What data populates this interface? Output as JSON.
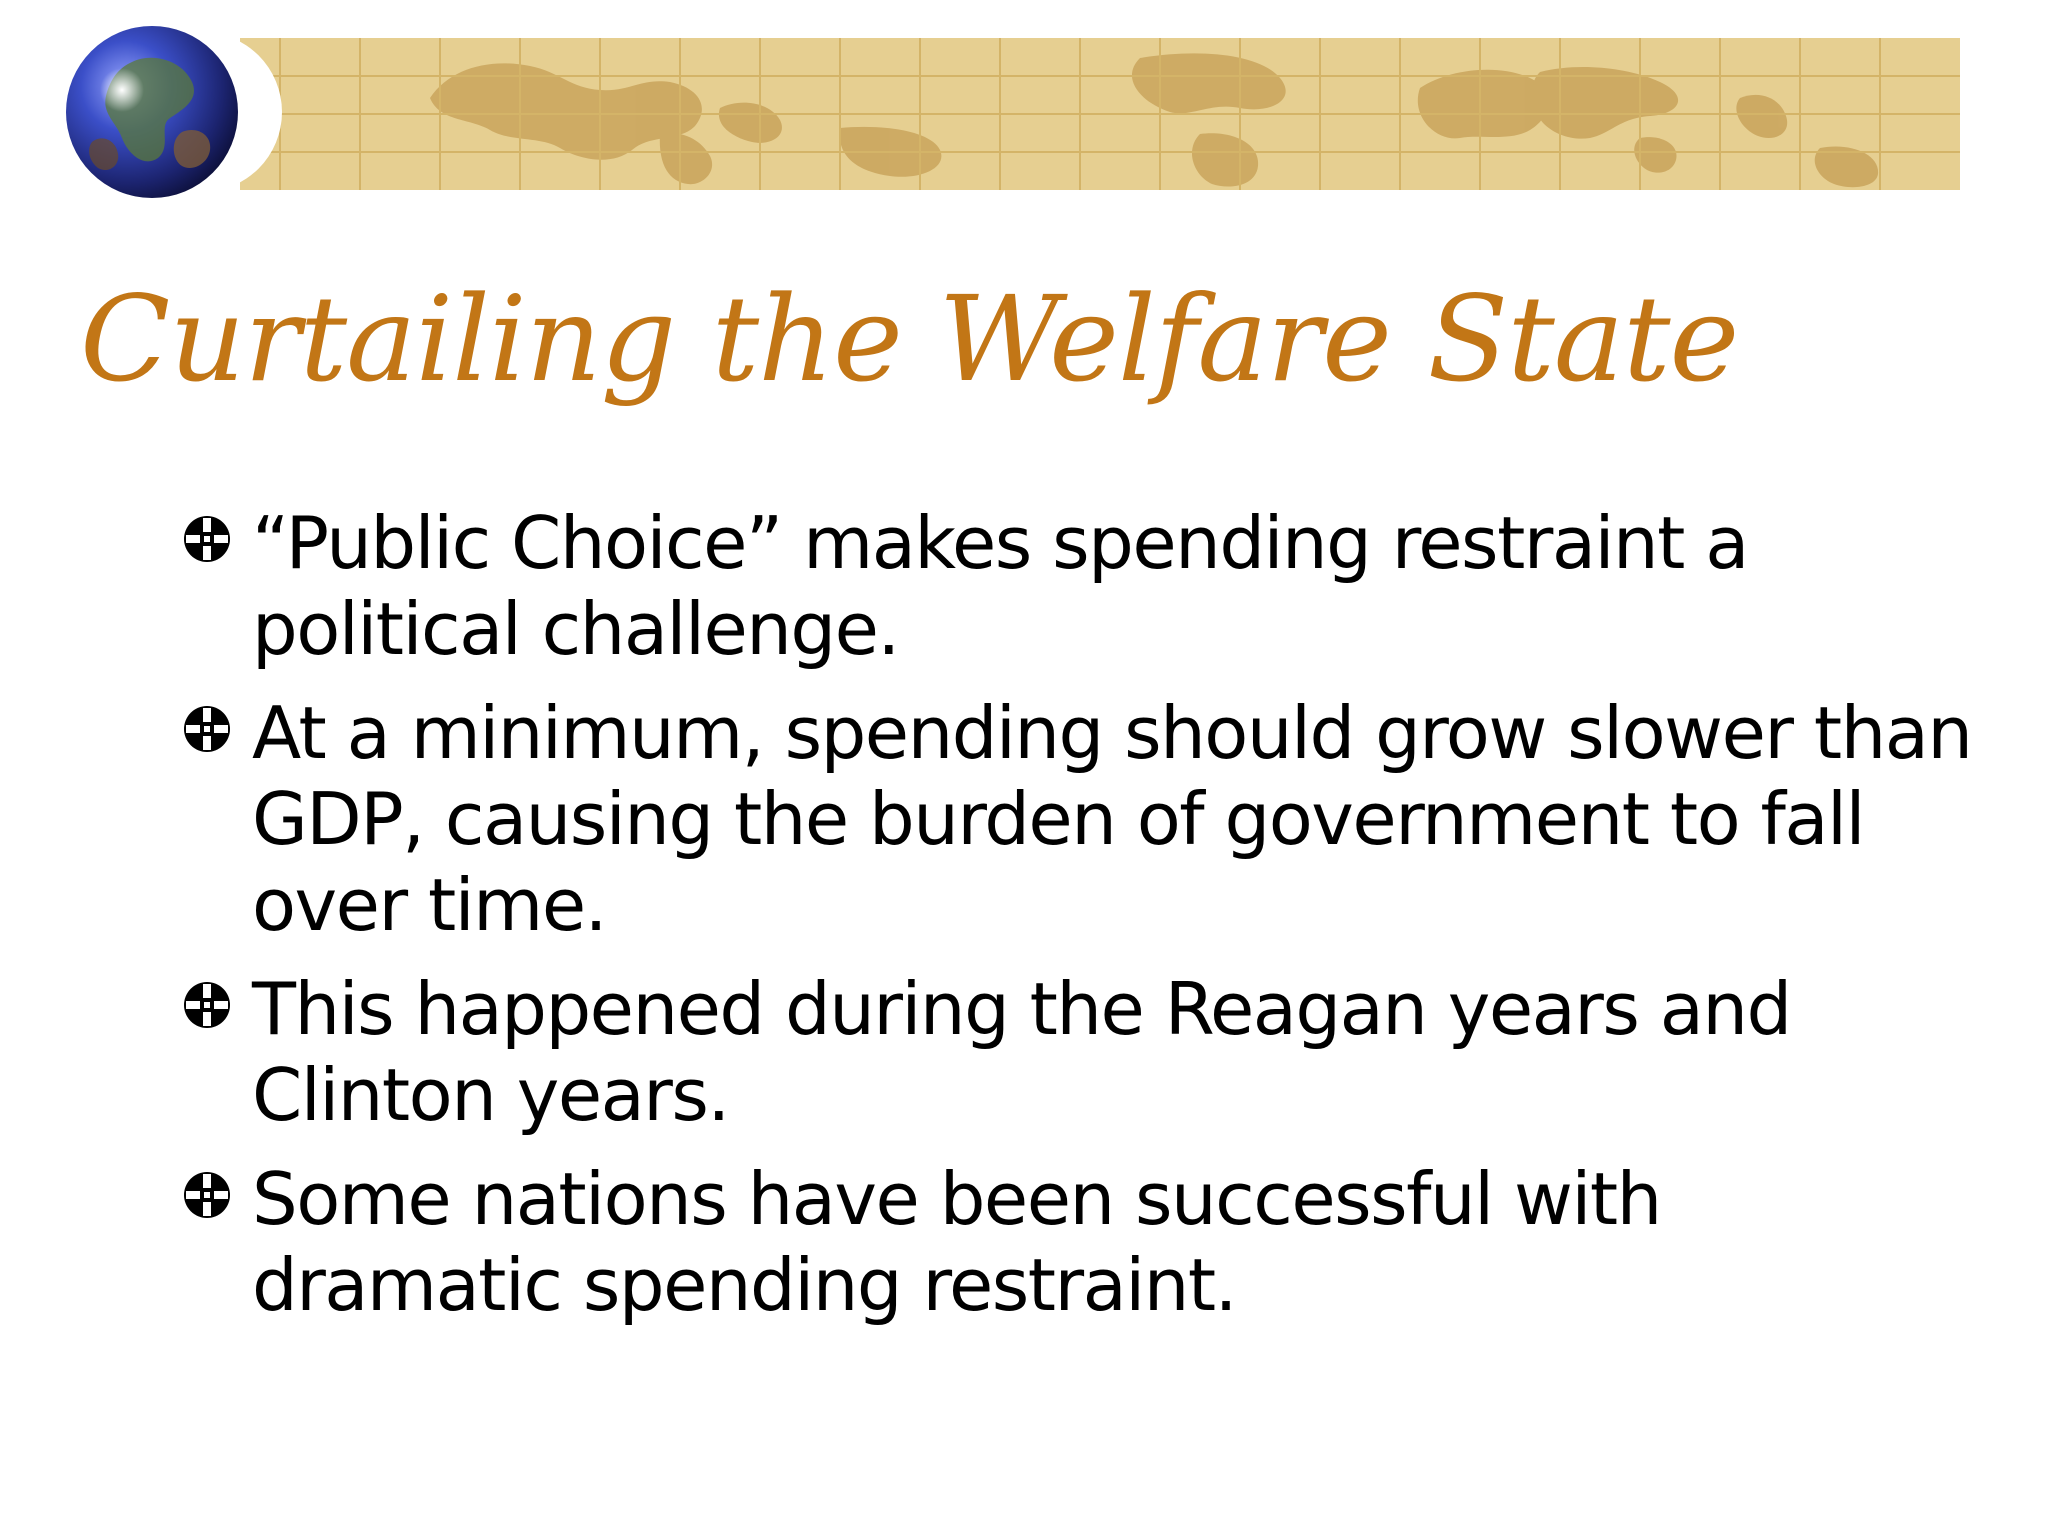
{
  "slide": {
    "title": "Curtailing the Welfare State",
    "bullets": [
      {
        "text": "“Public Choice” makes spending restraint a political challenge."
      },
      {
        "text": "At a minimum, spending should grow slower than GDP, causing the burden of government to fall over time."
      },
      {
        "text": "This happened during the Reagan years and Clinton years."
      },
      {
        "text": "Some nations have been successful with dramatic spending restraint."
      }
    ]
  },
  "theme": {
    "title_color": "#c27616",
    "text_color": "#000000",
    "banner_color": "#e6cf91",
    "banner_line_color": "#d7b96c",
    "land_color": "#c9a45c",
    "globe_icon": "globe-icon",
    "bullet_icon": "crosshair-bullet-icon"
  }
}
